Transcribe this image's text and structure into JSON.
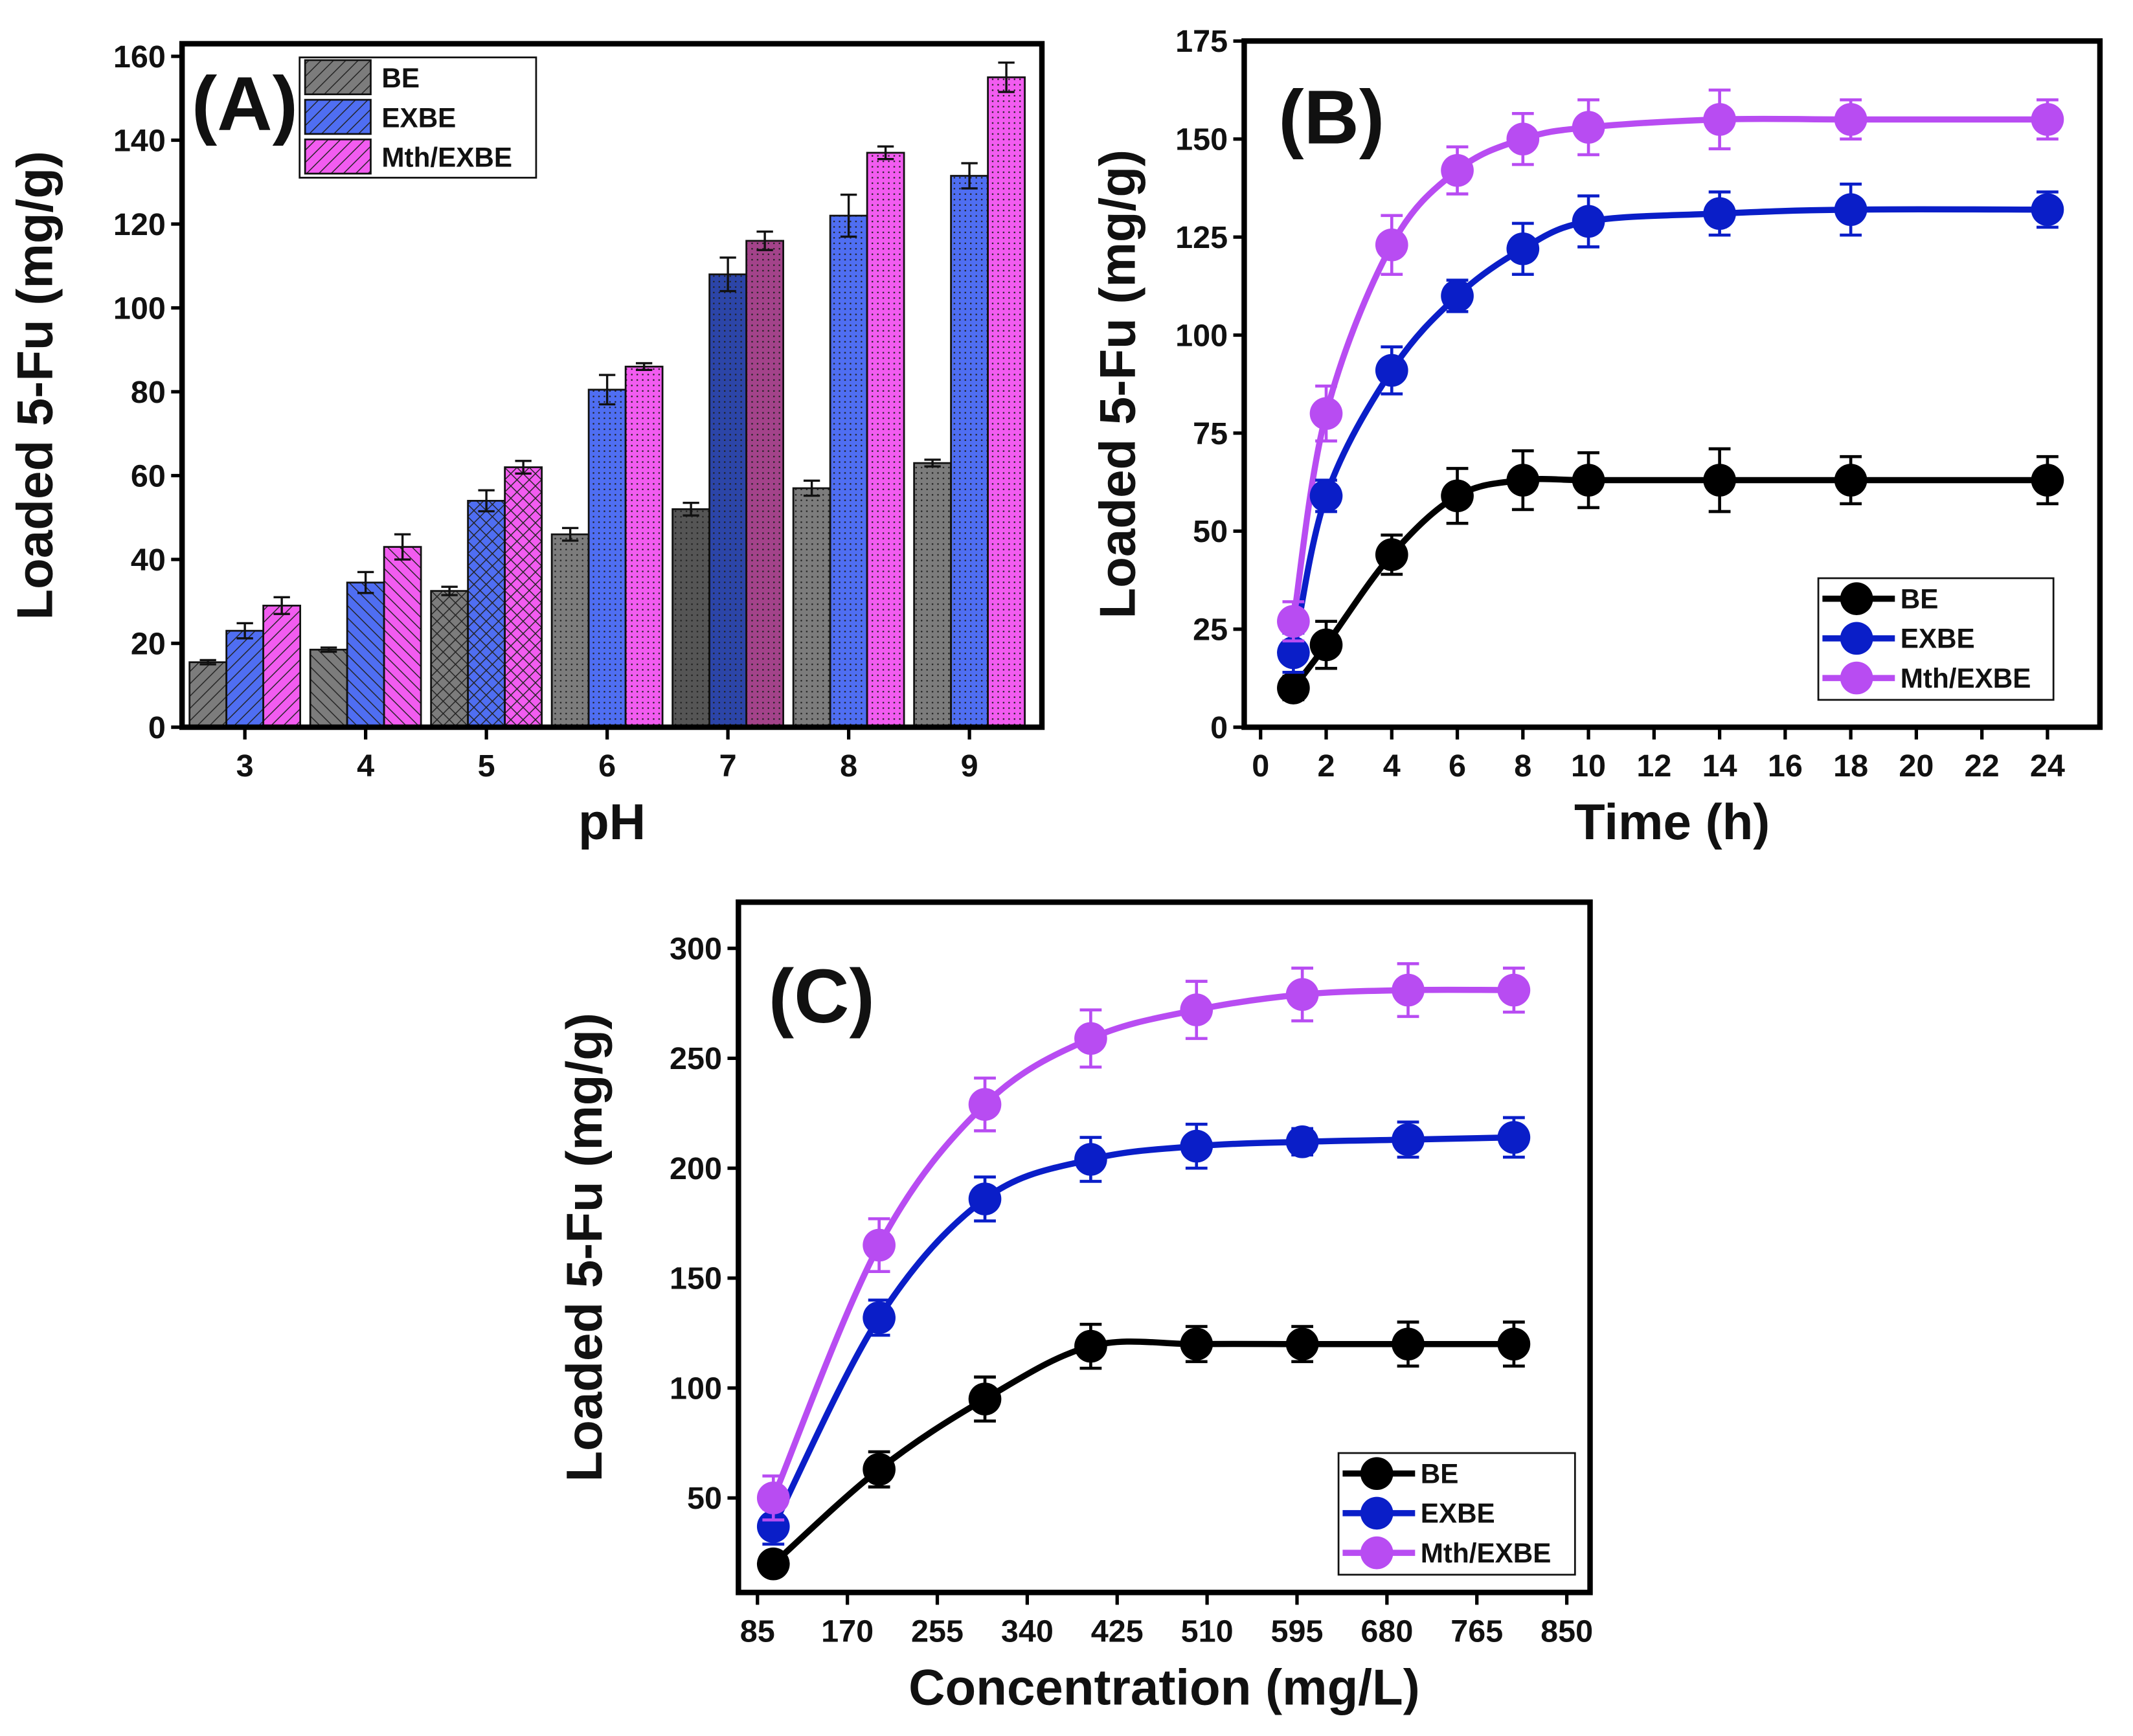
{
  "chart_data": [
    {
      "type": "bar",
      "panel_label": "(A)",
      "xlabel": "pH",
      "ylabel": "Loaded 5-Fu (mg/g)",
      "categories": [
        "3",
        "4",
        "5",
        "6",
        "7",
        "8",
        "9"
      ],
      "yticks": [
        0,
        20,
        40,
        60,
        80,
        100,
        120,
        140,
        160
      ],
      "ylim": [
        0,
        163
      ],
      "legend_position": "top-left",
      "series": [
        {
          "name": "BE",
          "color": "#7c7c7c",
          "dark_color": "#555555",
          "values": [
            15.5,
            18.5,
            32.5,
            46,
            52,
            57,
            63
          ],
          "errors": [
            0.5,
            0.5,
            1,
            1.5,
            1.5,
            1.8,
            0.8
          ]
        },
        {
          "name": "EXBE",
          "color": "#4f6ef2",
          "dark_color": "#2c45a8",
          "values": [
            23,
            34.5,
            54,
            80.5,
            108,
            122,
            131.5
          ],
          "errors": [
            1.8,
            2.5,
            2.5,
            3.5,
            4,
            5,
            3
          ]
        },
        {
          "name": "Mth/EXBE",
          "color": "#f25cf0",
          "dark_color": "#a3438a",
          "values": [
            29,
            43,
            62,
            86,
            116,
            137,
            155
          ],
          "errors": [
            2,
            3,
            1.5,
            0.8,
            2.2,
            1.5,
            3.5
          ]
        }
      ]
    },
    {
      "type": "line",
      "panel_label": "(B)",
      "xlabel": "Time (h)",
      "ylabel": "Loaded 5-Fu (mg/g)",
      "x": [
        1,
        2,
        4,
        6,
        8,
        10,
        14,
        18,
        24
      ],
      "xticks": [
        0,
        2,
        4,
        6,
        8,
        10,
        12,
        14,
        16,
        18,
        20,
        22,
        24
      ],
      "yticks": [
        0,
        25,
        50,
        75,
        100,
        125,
        150,
        175
      ],
      "xlim": [
        -0.5,
        25.6
      ],
      "ylim": [
        0,
        175
      ],
      "legend_position": "bottom-right",
      "series": [
        {
          "name": "BE",
          "color": "#000000",
          "values": [
            10,
            21,
            44,
            59,
            63,
            63,
            63,
            63,
            63
          ],
          "errors": [
            3,
            6,
            5,
            7,
            7.5,
            7,
            8,
            6,
            6
          ]
        },
        {
          "name": "EXBE",
          "color": "#0a1ec8",
          "values": [
            19,
            59,
            91,
            110,
            122,
            129,
            131,
            132,
            132
          ],
          "errors": [
            5,
            4,
            6,
            4,
            6.5,
            6.5,
            5.5,
            6.5,
            4.5
          ]
        },
        {
          "name": "Mth/EXBE",
          "color": "#b84cf2",
          "values": [
            27,
            80,
            123,
            142,
            150,
            153,
            155,
            155,
            155
          ],
          "errors": [
            5,
            7,
            7.5,
            6,
            6.5,
            7,
            7.5,
            5,
            5
          ]
        }
      ]
    },
    {
      "type": "line",
      "panel_label": "(C)",
      "xlabel": "Concentration (mg/L)",
      "ylabel": "Loaded 5-Fu (mg/g)",
      "x": [
        100,
        200,
        300,
        400,
        500,
        600,
        700,
        800
      ],
      "xticks": [
        85,
        170,
        255,
        340,
        425,
        510,
        595,
        680,
        765,
        850
      ],
      "yticks": [
        50,
        100,
        150,
        200,
        250,
        300
      ],
      "xlim": [
        67,
        872
      ],
      "ylim": [
        7,
        321
      ],
      "legend_position": "bottom-right",
      "series": [
        {
          "name": "BE",
          "color": "#000000",
          "values": [
            20,
            63,
            95,
            119,
            120,
            120,
            120,
            120
          ],
          "errors": [
            3,
            8,
            10,
            10,
            8,
            8,
            10,
            10
          ]
        },
        {
          "name": "EXBE",
          "color": "#0a1ec8",
          "values": [
            37,
            132,
            186,
            204,
            210,
            212,
            213,
            214
          ],
          "errors": [
            8,
            8,
            10,
            10,
            10,
            6,
            8,
            9
          ]
        },
        {
          "name": "Mth/EXBE",
          "color": "#b84cf2",
          "values": [
            50,
            165,
            229,
            259,
            272,
            279,
            281,
            281
          ],
          "errors": [
            10,
            12,
            12,
            13,
            13,
            12,
            12,
            10
          ]
        }
      ]
    }
  ]
}
